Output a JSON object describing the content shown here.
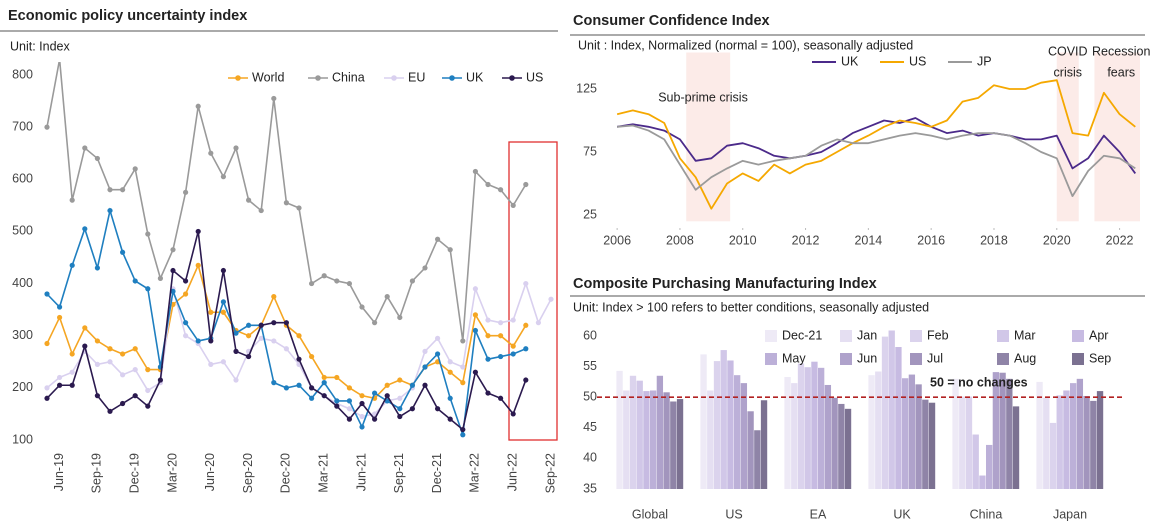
{
  "chart_data": [
    {
      "type": "line",
      "title": "Economic policy uncertainty index",
      "subtitle": "Unit: Index",
      "categories": [
        null,
        "Jun-19",
        null,
        null,
        "Sep-19",
        null,
        null,
        "Dec-19",
        null,
        null,
        "Mar-20",
        null,
        null,
        "Jun-20",
        null,
        null,
        "Sep-20",
        null,
        null,
        "Dec-20",
        null,
        null,
        "Mar-21",
        null,
        null,
        "Jun-21",
        null,
        null,
        "Sep-21",
        null,
        null,
        "Dec-21",
        null,
        null,
        "Mar-22",
        null,
        null,
        "Jun-22",
        null,
        null,
        "Sep-22"
      ],
      "ylim": [
        100,
        800
      ],
      "yticks": [
        100,
        200,
        300,
        400,
        500,
        600,
        700,
        800
      ],
      "legend": "top-right",
      "series": [
        {
          "name": "World",
          "color": "#f5a623",
          "values": [
            285,
            335,
            265,
            315,
            290,
            275,
            265,
            275,
            235,
            235,
            360,
            380,
            435,
            345,
            345,
            310,
            300,
            320,
            375,
            320,
            300,
            260,
            220,
            220,
            200,
            185,
            180,
            205,
            215,
            205,
            240,
            250,
            230,
            210,
            340,
            300,
            300,
            280,
            320,
            null,
            null
          ]
        },
        {
          "name": "China",
          "color": "#9a9a9a",
          "values": [
            700,
            830,
            560,
            660,
            640,
            580,
            580,
            620,
            495,
            410,
            465,
            575,
            740,
            650,
            605,
            660,
            560,
            540,
            755,
            555,
            545,
            400,
            415,
            405,
            400,
            355,
            325,
            375,
            335,
            405,
            430,
            485,
            465,
            290,
            615,
            590,
            580,
            550,
            590,
            null,
            null
          ]
        },
        {
          "name": "EU",
          "color": "#d9d0ef",
          "values": [
            200,
            220,
            230,
            270,
            245,
            250,
            225,
            235,
            195,
            210,
            390,
            300,
            285,
            245,
            250,
            215,
            270,
            295,
            290,
            275,
            245,
            200,
            185,
            170,
            160,
            145,
            150,
            175,
            180,
            200,
            270,
            295,
            250,
            240,
            390,
            330,
            325,
            330,
            400,
            325,
            370
          ]
        },
        {
          "name": "UK",
          "color": "#1f7fc0",
          "values": [
            380,
            355,
            435,
            505,
            430,
            540,
            460,
            405,
            390,
            240,
            385,
            325,
            290,
            295,
            365,
            305,
            320,
            320,
            210,
            200,
            205,
            180,
            210,
            175,
            175,
            125,
            190,
            175,
            160,
            205,
            240,
            265,
            180,
            110,
            310,
            255,
            260,
            265,
            275,
            null,
            null
          ]
        },
        {
          "name": "US",
          "color": "#2b1a4f",
          "values": [
            180,
            205,
            205,
            280,
            185,
            155,
            170,
            185,
            165,
            215,
            425,
            405,
            500,
            290,
            425,
            270,
            260,
            320,
            325,
            325,
            255,
            200,
            185,
            165,
            140,
            170,
            140,
            185,
            145,
            160,
            205,
            160,
            140,
            120,
            230,
            190,
            180,
            150,
            215,
            null,
            null
          ]
        }
      ]
    },
    {
      "type": "line",
      "title": "Consumer Confidence Index",
      "subtitle": "Unit : Index, Normalized (normal = 100), seasonally adjusted",
      "x": [
        2006,
        2006.5,
        2007,
        2007.5,
        2008,
        2008.5,
        2009,
        2009.5,
        2010,
        2010.5,
        2011,
        2011.5,
        2012,
        2012.5,
        2013,
        2013.5,
        2014,
        2014.5,
        2015,
        2015.5,
        2016,
        2016.5,
        2017,
        2017.5,
        2018,
        2018.5,
        2019,
        2019.5,
        2020,
        2020.5,
        2021,
        2021.5,
        2022,
        2022.5
      ],
      "xlim": [
        2005.55,
        2022.65
      ],
      "xticks": [
        2006,
        2008,
        2010,
        2012,
        2014,
        2016,
        2018,
        2020,
        2022
      ],
      "ylim": [
        20,
        150
      ],
      "yticks": [
        25,
        75,
        125
      ],
      "legend": "top",
      "series": [
        {
          "name": "UK",
          "color": "#4b2a8a",
          "values": [
            95,
            97,
            95,
            92,
            85,
            68,
            70,
            80,
            82,
            78,
            72,
            70,
            72,
            75,
            82,
            90,
            95,
            100,
            98,
            102,
            95,
            90,
            92,
            88,
            90,
            88,
            85,
            85,
            88,
            62,
            70,
            88,
            75,
            58
          ]
        },
        {
          "name": "US",
          "color": "#f5a800",
          "values": [
            105,
            108,
            105,
            98,
            70,
            55,
            30,
            50,
            58,
            52,
            65,
            58,
            65,
            68,
            75,
            82,
            88,
            95,
            100,
            98,
            95,
            100,
            115,
            118,
            128,
            125,
            125,
            130,
            132,
            90,
            88,
            122,
            105,
            95
          ]
        },
        {
          "name": "JP",
          "color": "#9a9a9a",
          "values": [
            95,
            96,
            92,
            85,
            65,
            45,
            55,
            62,
            68,
            65,
            68,
            70,
            72,
            80,
            85,
            82,
            82,
            85,
            88,
            90,
            88,
            85,
            88,
            90,
            90,
            88,
            82,
            75,
            70,
            40,
            60,
            72,
            70,
            62
          ]
        }
      ],
      "annotations": [
        {
          "text": "Sub-prime crisis",
          "xrange": [
            2008.2,
            2009.6
          ]
        },
        {
          "lines": [
            "COVID",
            "crisis"
          ],
          "xrange": [
            2020,
            2020.7
          ]
        },
        {
          "lines": [
            "Recession",
            "fears"
          ],
          "xrange": [
            2021.2,
            2022.65
          ],
          "color": "#e05050"
        }
      ]
    },
    {
      "type": "bar",
      "title": "Composite Purchasing Manufacturing Index",
      "subtitle": "Unit: Index > 100 refers to better conditions, seasonally adjusted",
      "categories": [
        "Global",
        "US",
        "EA",
        "UK",
        "China",
        "Japan"
      ],
      "ylim": [
        35,
        60
      ],
      "yticks": [
        35,
        40,
        45,
        50,
        55,
        60
      ],
      "reference_line": {
        "value": 50,
        "label": "50 = no changes",
        "color": "#b22222"
      },
      "series": [
        {
          "name": "Dec-21",
          "color": "#eeeaf6",
          "values": [
            54.3,
            57.0,
            53.3,
            53.6,
            53.0,
            52.5
          ]
        },
        {
          "name": "Jan",
          "color": "#e5dff2",
          "values": [
            51.1,
            51.1,
            52.3,
            54.2,
            50.1,
            49.9
          ]
        },
        {
          "name": "Feb",
          "color": "#dbd3ed",
          "values": [
            53.5,
            55.9,
            55.5,
            59.9,
            50.1,
            45.8
          ]
        },
        {
          "name": "Mar",
          "color": "#d1c7e8",
          "values": [
            52.7,
            57.7,
            54.9,
            60.9,
            43.9,
            50.3
          ]
        },
        {
          "name": "Apr",
          "color": "#c7bbe2",
          "values": [
            51.0,
            56.0,
            55.8,
            58.2,
            37.2,
            51.1
          ]
        },
        {
          "name": "May",
          "color": "#bcb0d8",
          "values": [
            51.1,
            53.6,
            54.8,
            53.1,
            42.2,
            52.3
          ]
        },
        {
          "name": "Jun",
          "color": "#afa2cb",
          "values": [
            53.5,
            52.3,
            52.0,
            53.7,
            54.1,
            53.0
          ]
        },
        {
          "name": "Jul",
          "color": "#a295bd",
          "values": [
            50.8,
            47.7,
            49.9,
            52.1,
            54.0,
            50.2
          ]
        },
        {
          "name": "Aug",
          "color": "#8f84a7",
          "values": [
            49.3,
            44.6,
            48.9,
            49.6,
            53.0,
            49.4
          ]
        },
        {
          "name": "Sep",
          "color": "#7b7191",
          "values": [
            49.7,
            49.5,
            48.1,
            49.1,
            48.5,
            51.0
          ]
        }
      ]
    }
  ]
}
